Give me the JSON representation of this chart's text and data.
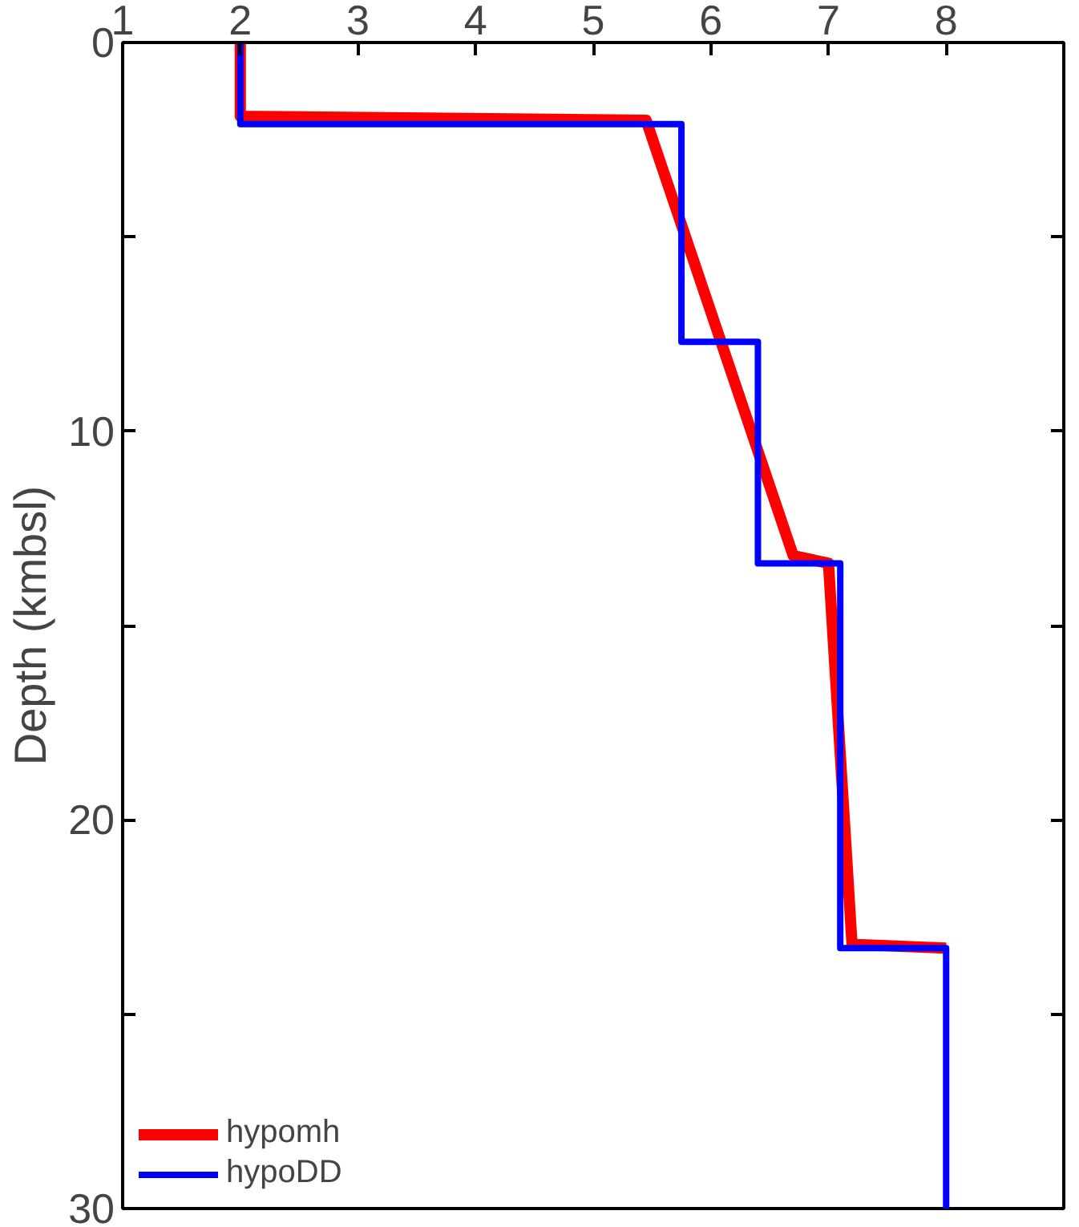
{
  "chart_data": {
    "type": "line",
    "ylabel": "Depth (kmbsl)",
    "xlim": [
      1,
      9
    ],
    "xticks": [
      1,
      2,
      3,
      4,
      5,
      6,
      7,
      8
    ],
    "ylim": [
      30,
      0
    ],
    "yticks": [
      0,
      {
        "value": 5,
        "label": null
      },
      10,
      {
        "value": 15,
        "label": null
      },
      20,
      {
        "value": 25,
        "label": null
      },
      30
    ],
    "series": [
      {
        "name": "hypomh",
        "color": "#ff0000",
        "x": [
          2,
          2,
          5.45,
          6.7,
          7.0,
          7.2,
          8
        ],
        "values": [
          0,
          1.9,
          2.0,
          13.2,
          13.4,
          23.2,
          23.3
        ]
      },
      {
        "name": "hypoDD",
        "color": "#0000ff",
        "x": [
          2,
          2,
          5.75,
          5.75,
          6.4,
          6.4,
          7.1,
          7.1,
          8,
          8
        ],
        "values": [
          0,
          2.1,
          2.1,
          7.7,
          7.7,
          13.4,
          13.4,
          23.3,
          23.3,
          30
        ]
      }
    ],
    "legend": "bottom left",
    "grid": false,
    "line_style": "solid",
    "marker": "none"
  }
}
